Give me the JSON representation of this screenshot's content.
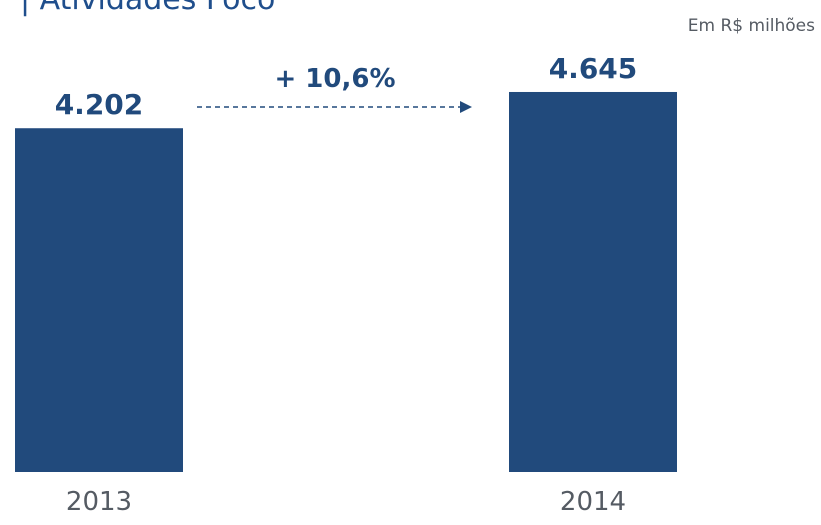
{
  "header": {
    "title": "| Atividades Foco",
    "unit": "Em R$ milhões"
  },
  "growth_label": "+ 10,6%",
  "colors": {
    "bar": "#214a7c",
    "value_text": "#214a7c",
    "title": "#1f4e8c",
    "axis_text": "#555b63",
    "arrow": "#214a7c"
  },
  "chart_data": {
    "type": "bar",
    "categories": [
      "2013",
      "2014"
    ],
    "values": [
      4202,
      4645
    ],
    "value_labels": [
      "4.202",
      "4.645"
    ],
    "unit": "Em R$ milhões",
    "annotations": [
      "+ 10,6%"
    ],
    "grid": false,
    "ylim": [
      0,
      5000
    ]
  }
}
